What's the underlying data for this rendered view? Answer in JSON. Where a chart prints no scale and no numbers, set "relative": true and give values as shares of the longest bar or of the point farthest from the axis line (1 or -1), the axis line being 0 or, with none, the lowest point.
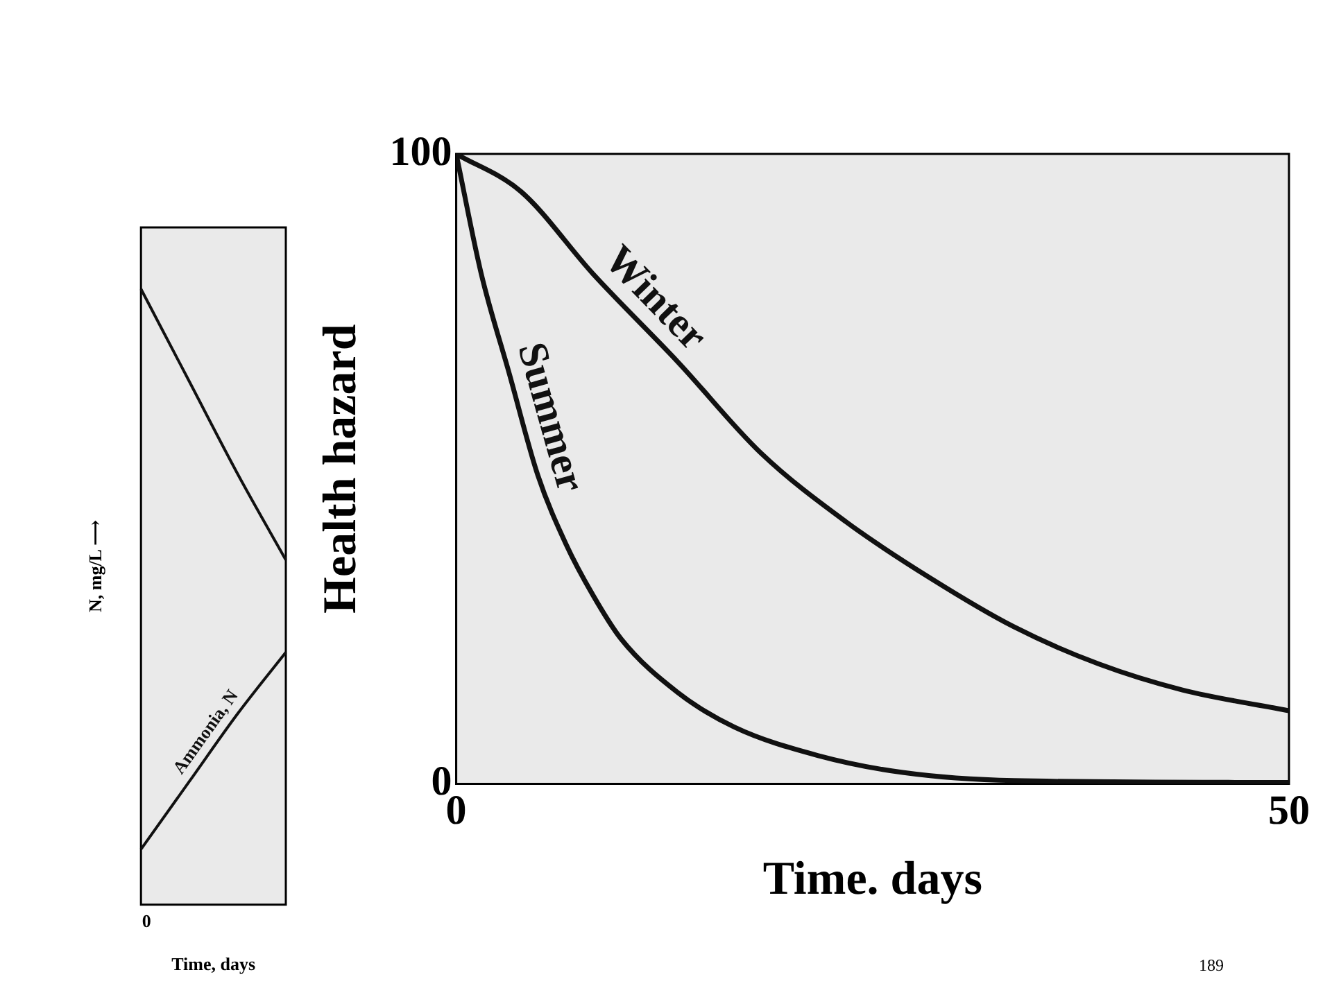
{
  "chart_data": [
    {
      "type": "line",
      "relative": true,
      "ylabel": "N, mg/L ⟶",
      "xlabel": "Time, days",
      "categories": [
        null,
        null,
        null,
        null
      ],
      "tick_labels": false,
      "annotations": [
        "0"
      ],
      "legend": false,
      "marker": "none",
      "series": [
        {
          "color": "#111111",
          "values": [
            1,
            0.85,
            0.7,
            0.56
          ]
        },
        {
          "name": "Ammonia, N",
          "color": "#111111",
          "values": [
            0.09,
            0.2,
            0.31,
            0.41
          ]
        }
      ]
    },
    {
      "type": "line",
      "ylabel": "Health hazard",
      "xlabel": "Time. days",
      "xlim": [
        0,
        50
      ],
      "ylim": [
        0,
        100
      ],
      "xticks": [
        0,
        50
      ],
      "yticks": [
        0,
        100
      ],
      "legend": false,
      "marker": "none",
      "annotations": [
        "189"
      ],
      "series": [
        {
          "name": "Winter",
          "color": "#111111",
          "x": [
            0,
            3.9,
            8.2,
            13.3,
            18.3,
            23.4,
            28.5,
            33.5,
            38.6,
            43.6,
            50
          ],
          "values": [
            100,
            94,
            81,
            67,
            52.5,
            41.6,
            32.6,
            24.9,
            19,
            14.9,
            11.6
          ]
        },
        {
          "name": "Summer",
          "color": "#111111",
          "x": [
            0,
            1.5,
            3.2,
            4.9,
            6.6,
            8.2,
            9.9,
            13.3,
            16.7,
            21.7,
            26.8,
            33.5,
            50
          ],
          "values": [
            100,
            81,
            65,
            49,
            38,
            30,
            23,
            14.5,
            9,
            4.5,
            1.8,
            0.5,
            0.2
          ]
        }
      ]
    }
  ]
}
